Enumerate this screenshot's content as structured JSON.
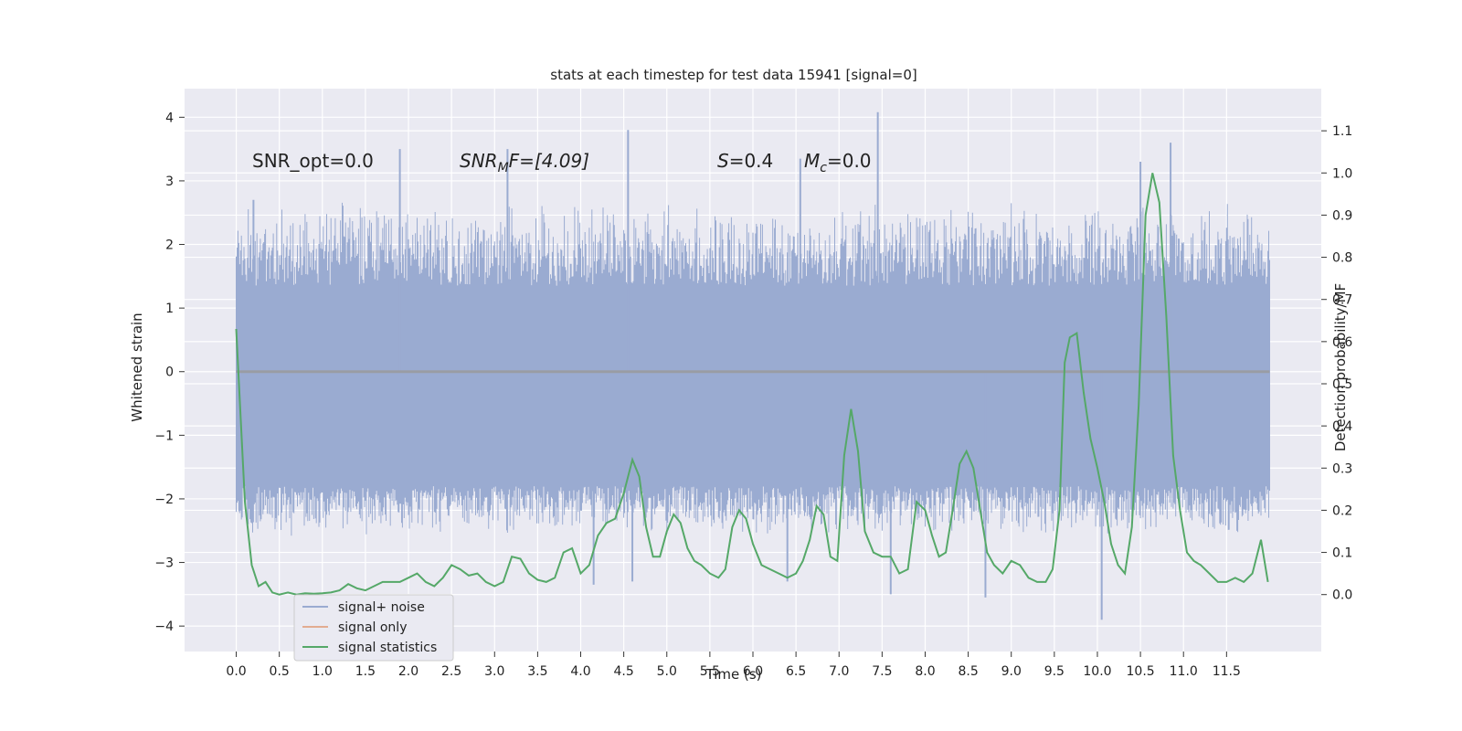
{
  "chart_data": {
    "type": "line",
    "title": "stats at each timestep for test data 15941 [signal=0]",
    "xlabel": "Time (s)",
    "ylabel": "Whitened strain",
    "y2label": "Detection probability/MF",
    "xlim": [
      -0.6,
      12.6
    ],
    "ylim": [
      -4.4,
      4.45
    ],
    "y2lim": [
      -0.135,
      1.2
    ],
    "x_ticks": [
      "0.0",
      "0.5",
      "1.0",
      "1.5",
      "2.0",
      "2.5",
      "3.0",
      "3.5",
      "4.0",
      "4.5",
      "5.0",
      "5.5",
      "6.0",
      "6.5",
      "7.0",
      "7.5",
      "8.0",
      "8.5",
      "9.0",
      "9.5",
      "10.0",
      "10.5",
      "11.0",
      "11.5"
    ],
    "y_ticks": [
      "4",
      "3",
      "2",
      "1",
      "0",
      "−1",
      "−2",
      "−3",
      "−4"
    ],
    "y2_ticks": [
      "1.1",
      "1.0",
      "0.9",
      "0.8",
      "0.7",
      "0.6",
      "0.5",
      "0.4",
      "0.3",
      "0.2",
      "0.1",
      "0.0"
    ],
    "annotations": {
      "snr_opt": "SNR_opt=0.0",
      "snr_mf_sym": "SNR",
      "snr_mf_sub": "M",
      "snr_mf_rest": "F=[4.09]",
      "s_sym": "S",
      "s_rest": "=0.4",
      "mc_sym": "M",
      "mc_sub": "c",
      "mc_rest": "=0.0"
    },
    "legend": {
      "position": "lower-left",
      "entries": [
        "signal+ noise",
        "signal only",
        "signal statistics"
      ]
    },
    "colors": {
      "noise": "#9aabd1",
      "signal_only": "#dd8452",
      "statistics": "#55a868",
      "background": "#eaeaf2",
      "grid": "#ffffff"
    },
    "noise": {
      "t_start": 0.0,
      "t_end": 12.0,
      "core_range": [
        -1.8,
        1.35
      ],
      "typical_peak_range": [
        -2.6,
        2.7
      ],
      "extremes": [
        {
          "t": 7.45,
          "v": 4.08
        },
        {
          "t": 4.55,
          "v": 3.8
        },
        {
          "t": 10.85,
          "v": 3.6
        },
        {
          "t": 1.9,
          "v": 3.5
        },
        {
          "t": 3.15,
          "v": 3.5
        },
        {
          "t": 6.55,
          "v": 3.35
        },
        {
          "t": 10.5,
          "v": 3.3
        },
        {
          "t": 10.05,
          "v": -3.9
        },
        {
          "t": 8.7,
          "v": -3.55
        },
        {
          "t": 7.6,
          "v": -3.5
        },
        {
          "t": 4.15,
          "v": -3.35
        },
        {
          "t": 4.6,
          "v": -3.3
        },
        {
          "t": 6.4,
          "v": -3.3
        },
        {
          "t": 0.2,
          "v": 2.7
        }
      ]
    },
    "signal_only": {
      "t": [
        0.0,
        12.0
      ],
      "v": [
        0.0,
        0.0
      ]
    },
    "statistics": {
      "t": [
        0.0,
        0.1,
        0.18,
        0.26,
        0.34,
        0.42,
        0.5,
        0.6,
        0.7,
        0.8,
        0.9,
        1.0,
        1.1,
        1.2,
        1.3,
        1.4,
        1.5,
        1.6,
        1.7,
        1.8,
        1.9,
        2.0,
        2.1,
        2.2,
        2.3,
        2.4,
        2.5,
        2.6,
        2.7,
        2.8,
        2.9,
        3.0,
        3.1,
        3.2,
        3.3,
        3.4,
        3.5,
        3.6,
        3.7,
        3.8,
        3.9,
        4.0,
        4.1,
        4.2,
        4.3,
        4.4,
        4.5,
        4.6,
        4.68,
        4.76,
        4.84,
        4.92,
        5.0,
        5.08,
        5.16,
        5.24,
        5.32,
        5.4,
        5.5,
        5.6,
        5.68,
        5.76,
        5.84,
        5.92,
        6.0,
        6.1,
        6.2,
        6.3,
        6.4,
        6.5,
        6.58,
        6.66,
        6.74,
        6.82,
        6.9,
        6.98,
        7.06,
        7.14,
        7.22,
        7.3,
        7.4,
        7.5,
        7.6,
        7.7,
        7.8,
        7.9,
        8.0,
        8.08,
        8.16,
        8.24,
        8.32,
        8.4,
        8.48,
        8.56,
        8.64,
        8.72,
        8.8,
        8.9,
        9.0,
        9.1,
        9.2,
        9.3,
        9.4,
        9.48,
        9.56,
        9.62,
        9.68,
        9.76,
        9.84,
        9.92,
        10.0,
        10.08,
        10.16,
        10.24,
        10.32,
        10.4,
        10.48,
        10.56,
        10.64,
        10.72,
        10.8,
        10.88,
        10.96,
        11.04,
        11.12,
        11.2,
        11.3,
        11.4,
        11.5,
        11.6,
        11.7,
        11.8,
        11.9,
        11.98
      ],
      "v": [
        0.63,
        0.22,
        0.07,
        0.02,
        0.03,
        0.005,
        0.0,
        0.005,
        0.0,
        0.003,
        0.002,
        0.003,
        0.005,
        0.01,
        0.025,
        0.015,
        0.01,
        0.02,
        0.03,
        0.03,
        0.03,
        0.04,
        0.05,
        0.03,
        0.02,
        0.04,
        0.07,
        0.06,
        0.045,
        0.05,
        0.03,
        0.02,
        0.03,
        0.09,
        0.085,
        0.05,
        0.035,
        0.03,
        0.04,
        0.1,
        0.11,
        0.05,
        0.07,
        0.14,
        0.17,
        0.18,
        0.24,
        0.32,
        0.28,
        0.16,
        0.09,
        0.09,
        0.15,
        0.19,
        0.17,
        0.11,
        0.08,
        0.07,
        0.05,
        0.04,
        0.06,
        0.16,
        0.2,
        0.18,
        0.12,
        0.07,
        0.06,
        0.05,
        0.04,
        0.05,
        0.08,
        0.13,
        0.21,
        0.19,
        0.09,
        0.08,
        0.33,
        0.44,
        0.34,
        0.15,
        0.1,
        0.09,
        0.09,
        0.05,
        0.06,
        0.22,
        0.2,
        0.14,
        0.09,
        0.1,
        0.2,
        0.31,
        0.34,
        0.3,
        0.2,
        0.1,
        0.07,
        0.05,
        0.08,
        0.07,
        0.04,
        0.03,
        0.03,
        0.06,
        0.2,
        0.55,
        0.61,
        0.62,
        0.48,
        0.37,
        0.3,
        0.22,
        0.12,
        0.07,
        0.05,
        0.16,
        0.45,
        0.9,
        1.0,
        0.93,
        0.66,
        0.33,
        0.2,
        0.1,
        0.08,
        0.07,
        0.05,
        0.03,
        0.03,
        0.04,
        0.03,
        0.05,
        0.13,
        0.03
      ]
    }
  }
}
